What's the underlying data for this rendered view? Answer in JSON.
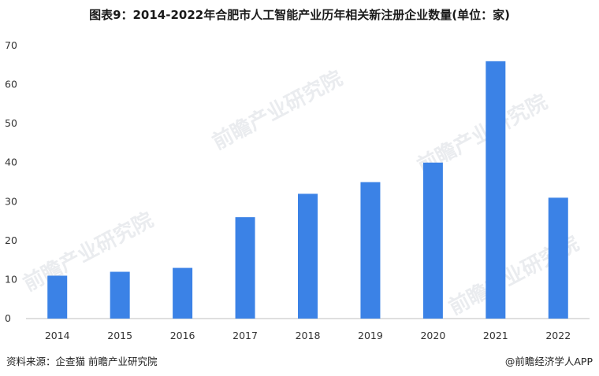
{
  "title": "图表9：2014-2022年合肥市人工智能产业历年相关新注册企业数量(单位：家)",
  "source": "资料来源：企查猫 前瞻产业研究院",
  "credit": "@前瞻经济学人APP",
  "watermark": "前瞻产业研究院",
  "colors": {
    "bar": "#3b82e6",
    "axis": "#bfbfbf",
    "tick_text": "#333333"
  },
  "chart_data": {
    "type": "bar",
    "title": "图表9：2014-2022年合肥市人工智能产业历年相关新注册企业数量(单位：家)",
    "categories": [
      "2014",
      "2015",
      "2016",
      "2017",
      "2018",
      "2019",
      "2020",
      "2021",
      "2022"
    ],
    "values": [
      11,
      12,
      13,
      26,
      32,
      35,
      40,
      66,
      31
    ],
    "ylim": [
      0,
      70
    ],
    "yticks": [
      0,
      10,
      20,
      30,
      40,
      50,
      60,
      70
    ],
    "grid": false,
    "legend": "none"
  }
}
